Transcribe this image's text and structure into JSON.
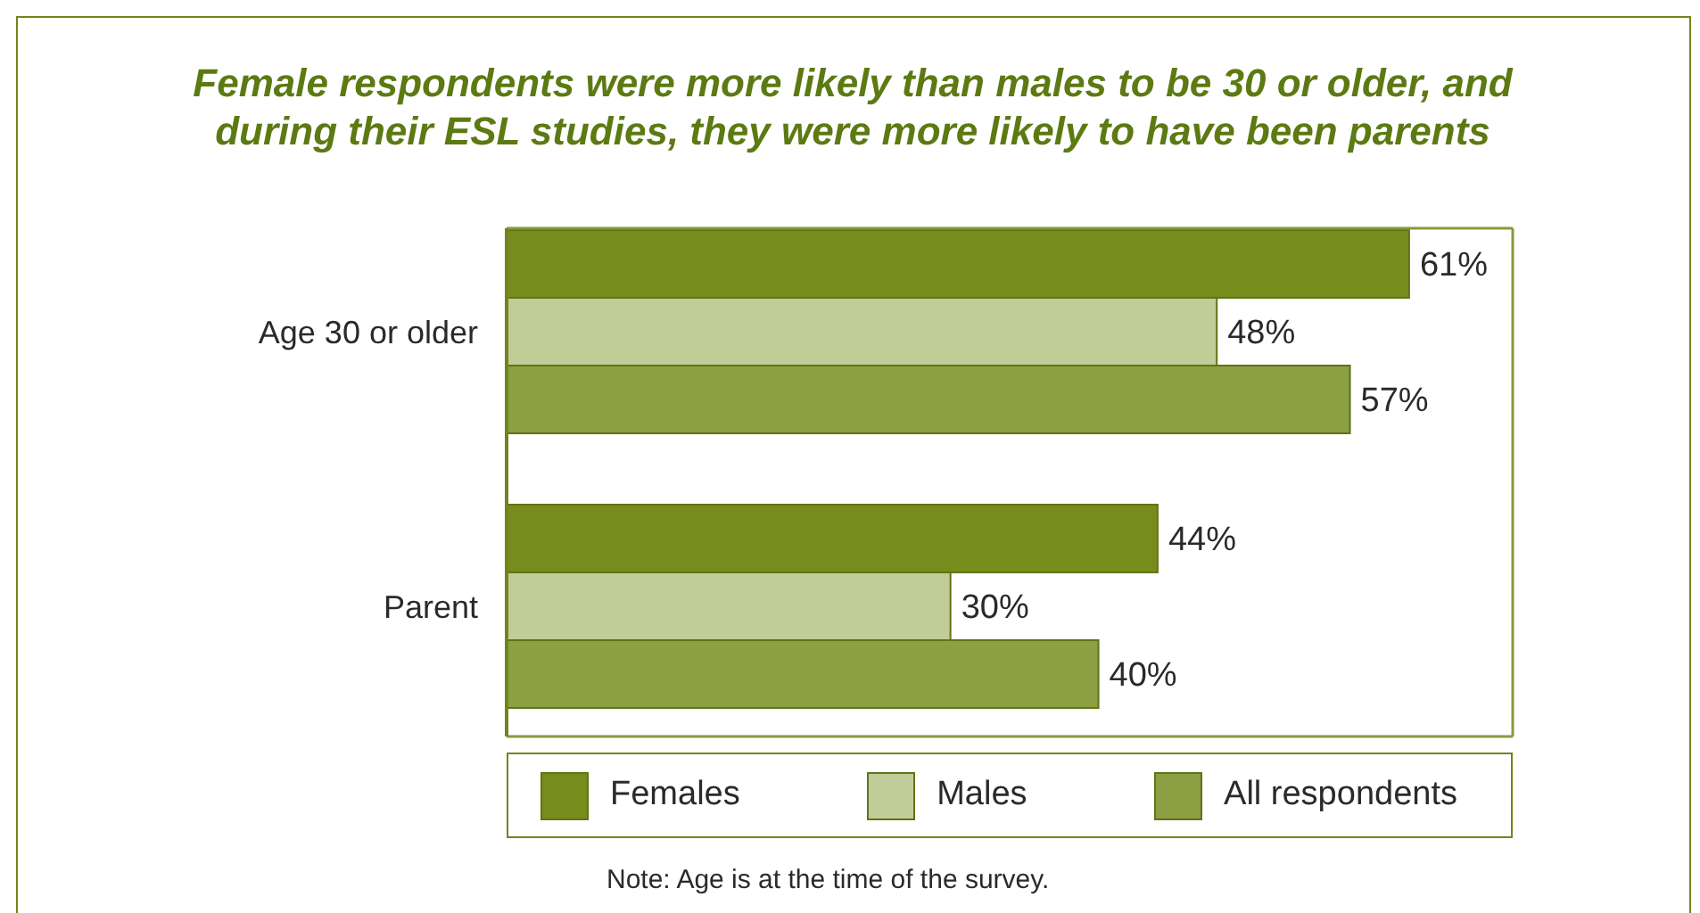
{
  "chart_data": {
    "type": "bar",
    "orientation": "horizontal",
    "title": "Female respondents were more likely than males to be 30 or older, and during their ESL studies, they were more likely to have been parents",
    "categories": [
      "Age 30 or older",
      "Parent"
    ],
    "series": [
      {
        "name": "Females",
        "color": "#778c1c",
        "values": [
          61,
          44
        ],
        "value_labels": [
          "61%",
          "44%"
        ]
      },
      {
        "name": "Males",
        "color": "#c1cc98",
        "values": [
          48,
          30
        ],
        "value_labels": [
          "48%",
          "30%"
        ]
      },
      {
        "name": "All respondents",
        "color": "#8c9f42",
        "values": [
          57,
          40
        ],
        "value_labels": [
          "57%",
          "40%"
        ]
      }
    ],
    "xlim": [
      0,
      68
    ],
    "tick_labels": "y",
    "legend": "bottom",
    "annotations": [
      "Note: Age is at the time of the survey."
    ]
  }
}
